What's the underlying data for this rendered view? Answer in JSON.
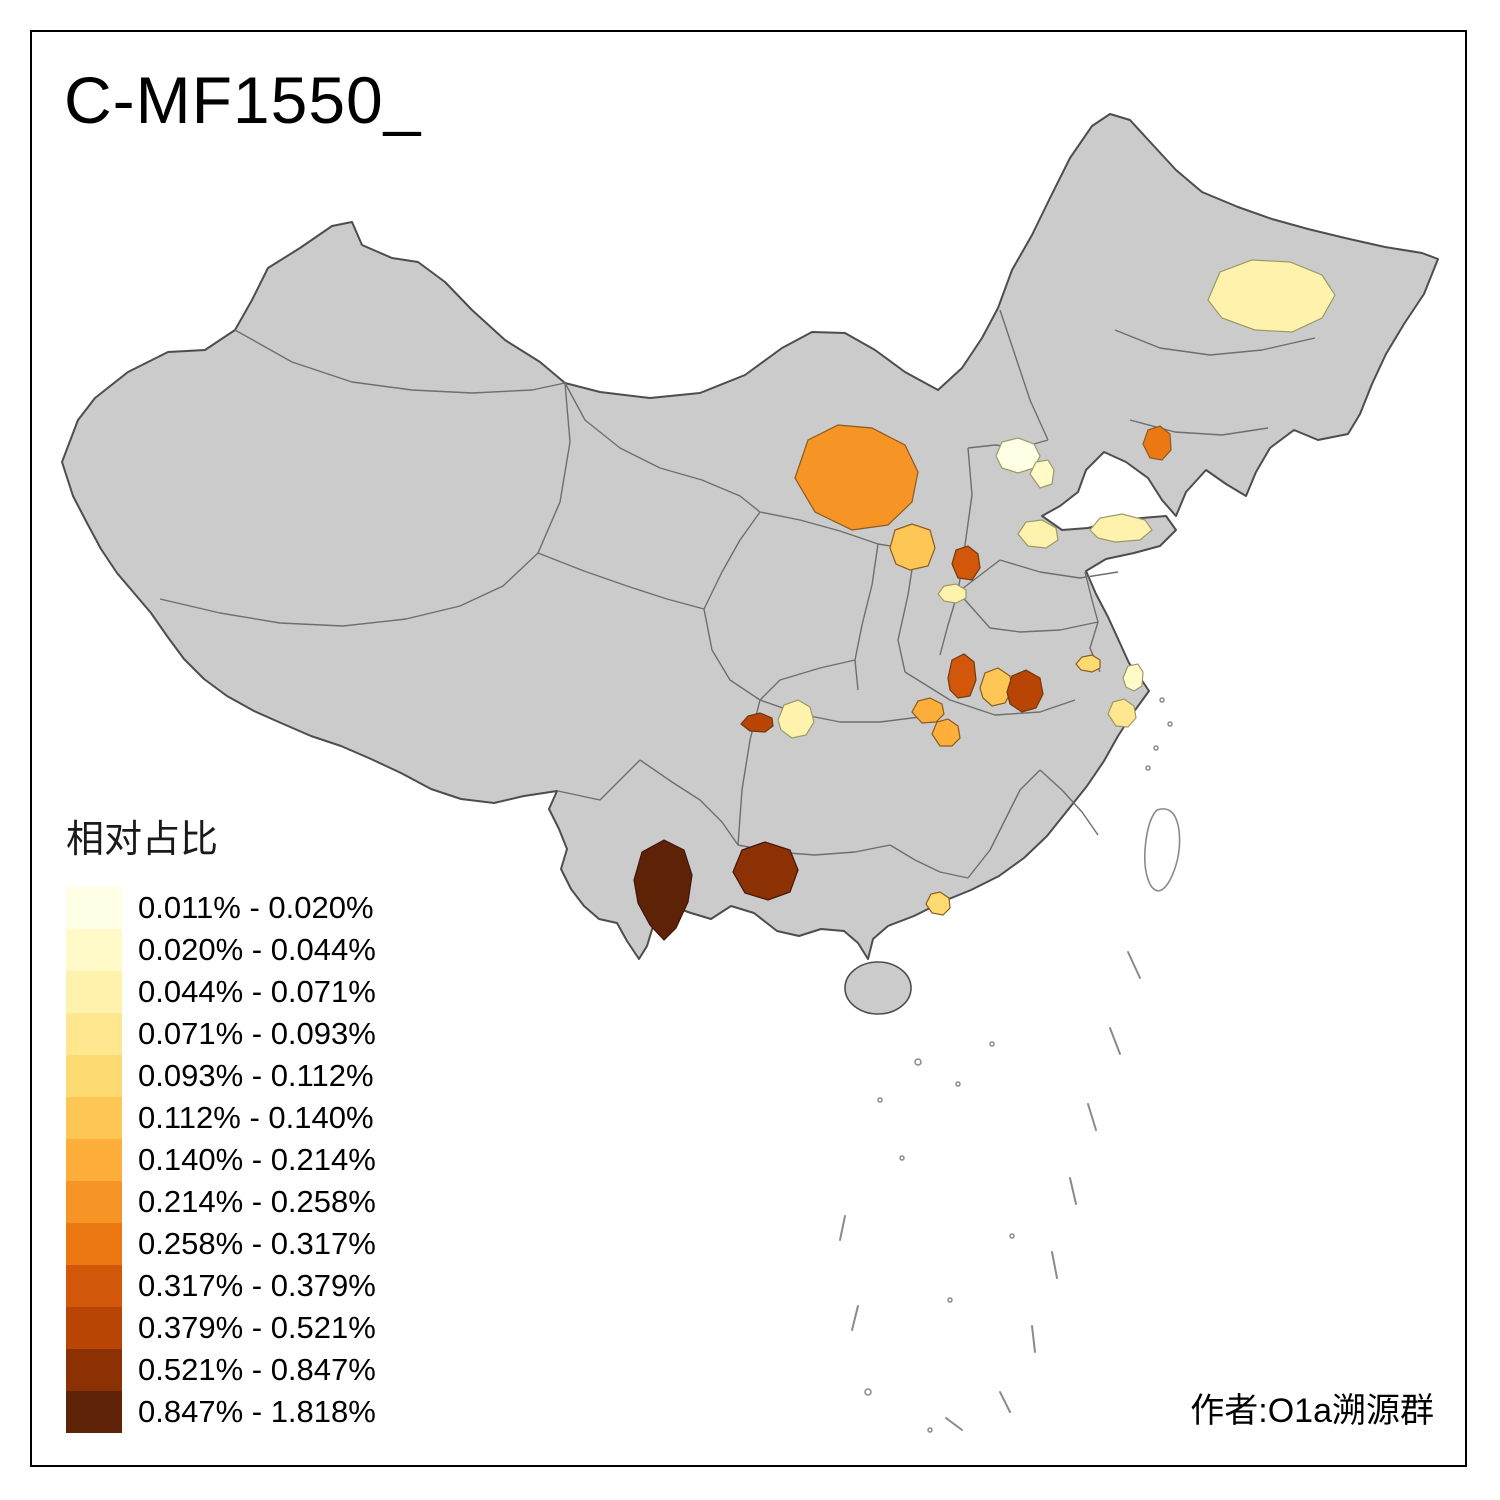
{
  "title": "C-MF1550_",
  "attribution": "作者:O1a溯源群",
  "legend": {
    "title": "相对占比",
    "items": [
      {
        "label": "0.011% - 0.020%",
        "color": "#FFFFE5"
      },
      {
        "label": "0.020% - 0.044%",
        "color": "#FFFAC8"
      },
      {
        "label": "0.044% - 0.071%",
        "color": "#FFF2AC"
      },
      {
        "label": "0.071% - 0.093%",
        "color": "#FEE78F"
      },
      {
        "label": "0.093% - 0.112%",
        "color": "#FEDB72"
      },
      {
        "label": "0.112% - 0.140%",
        "color": "#FEC755"
      },
      {
        "label": "0.140% - 0.214%",
        "color": "#FEAF3B"
      },
      {
        "label": "0.214% - 0.258%",
        "color": "#F79426"
      },
      {
        "label": "0.258% - 0.317%",
        "color": "#EC7814"
      },
      {
        "label": "0.317% - 0.379%",
        "color": "#D2570A"
      },
      {
        "label": "0.379% - 0.521%",
        "color": "#B84503"
      },
      {
        "label": "0.521% - 0.847%",
        "color": "#8C3104"
      },
      {
        "label": "0.847% - 1.818%",
        "color": "#5E2206"
      }
    ]
  },
  "map": {
    "colors": {
      "land": "#CBCBCB",
      "land_stroke": "#4D4D4D",
      "province_stroke": "#6E6E6E",
      "island_stroke": "#8A8A8A",
      "frame": "#000000",
      "background": "#FFFFFF"
    },
    "region_classes": {
      "heilongjiang": 2,
      "ordos": 7,
      "beijing": 0,
      "beijing-east": 1,
      "liaoning": 8,
      "shanxi-central": 5,
      "shijiazhuang": 9,
      "hebei-south": 2,
      "shandong-west": 2,
      "shanxi-south": 2,
      "henan-central": 9,
      "henan-east": 5,
      "hubei": 10,
      "anhui": 4,
      "chongqing": 10,
      "sichuan-east": 2,
      "hunan-north": 6,
      "hunan-central": 6,
      "jiangsu-south": 1,
      "zhejiang-north": 3,
      "yunnan-southwest": 12,
      "guangxi-west": 11,
      "guangdong-central": 4
    }
  }
}
